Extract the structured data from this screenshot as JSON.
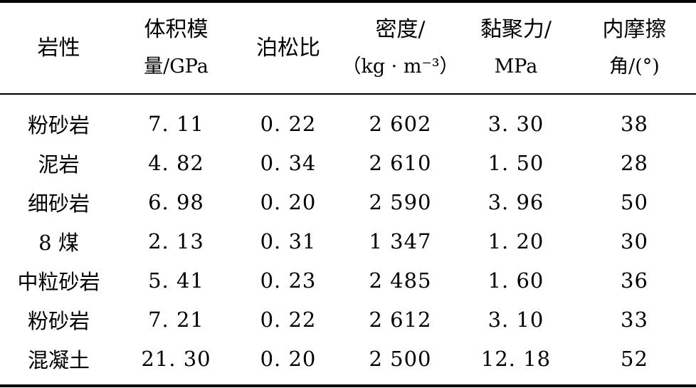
{
  "table": {
    "headers": [
      {
        "line1": "岩性",
        "line2": ""
      },
      {
        "line1": "体积模",
        "line2": "量/GPa"
      },
      {
        "line1": "泊松比",
        "line2": ""
      },
      {
        "line1": "密度/",
        "line2": "（kg · m⁻³）"
      },
      {
        "line1": "黏聚力/",
        "line2": "MPa"
      },
      {
        "line1": "内摩擦",
        "line2": "角/(°)"
      }
    ],
    "rows": [
      [
        "粉砂岩",
        "7. 11",
        "0. 22",
        "2 602",
        "3. 30",
        "38"
      ],
      [
        "泥岩",
        "4. 82",
        "0. 34",
        "2 610",
        "1. 50",
        "28"
      ],
      [
        "细砂岩",
        "6. 98",
        "0. 20",
        "2 590",
        "3. 96",
        "50"
      ],
      [
        "8 煤",
        "2. 13",
        "0. 31",
        "1 347",
        "1. 20",
        "30"
      ],
      [
        "中粒砂岩",
        "5. 41",
        "0. 23",
        "2 485",
        "1. 60",
        "36"
      ],
      [
        "粉砂岩",
        "7. 21",
        "0. 22",
        "2 612",
        "3. 10",
        "33"
      ],
      [
        "混凝土",
        "21. 30",
        "0. 20",
        "2 500",
        "12. 18",
        "52"
      ]
    ]
  }
}
